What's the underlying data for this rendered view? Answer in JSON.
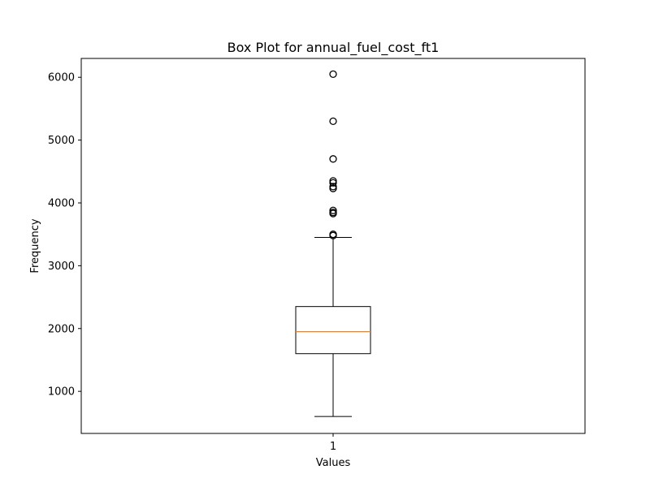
{
  "chart_data": {
    "type": "box",
    "title": "Box Plot for annual_fuel_cost_ft1",
    "xlabel": "Values",
    "ylabel": "Frequency",
    "categories": [
      "1"
    ],
    "ylim": [
      330,
      6300
    ],
    "yticks": [
      1000,
      2000,
      3000,
      4000,
      5000,
      6000
    ],
    "yticklabels": [
      "1000",
      "2000",
      "3000",
      "4000",
      "5000",
      "6000"
    ],
    "grid": false,
    "box": {
      "whisker_low": 600,
      "q1": 1600,
      "median": 1950,
      "q3": 2350,
      "whisker_high": 3450
    },
    "outliers": [
      3480,
      3500,
      3830,
      3850,
      3880,
      4230,
      4260,
      4320,
      4350,
      4700,
      5300,
      6050
    ],
    "colors": {
      "box": "#000000",
      "median": "#ff7f0e",
      "flier": "#000000"
    }
  }
}
